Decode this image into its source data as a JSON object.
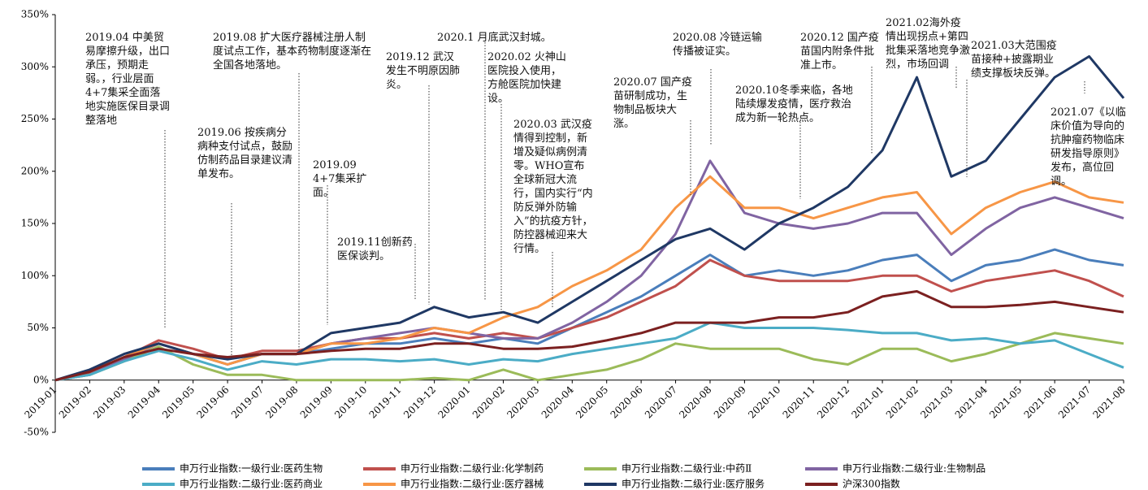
{
  "chart_data": {
    "type": "line",
    "categories": [
      "2019-01",
      "2019-02",
      "2019-03",
      "2019-04",
      "2019-05",
      "2019-06",
      "2019-07",
      "2019-08",
      "2019-09",
      "2019-10",
      "2019-11",
      "2019-12",
      "2020-01",
      "2020-02",
      "2020-03",
      "2020-04",
      "2020-05",
      "2020-06",
      "2020-07",
      "2020-08",
      "2020-09",
      "2020-10",
      "2020-11",
      "2020-12",
      "2021-01",
      "2021-02",
      "2021-03",
      "2021-04",
      "2021-05",
      "2021-06",
      "2021-07",
      "2021-08"
    ],
    "ylim": [
      -50,
      350
    ],
    "yticks": [
      {
        "value": -50,
        "label": "-50%"
      },
      {
        "value": 0,
        "label": "0%"
      },
      {
        "value": 50,
        "label": "50%"
      },
      {
        "value": 100,
        "label": "100%"
      },
      {
        "value": 150,
        "label": "150%"
      },
      {
        "value": 200,
        "label": "200%"
      },
      {
        "value": 250,
        "label": "250%"
      },
      {
        "value": 300,
        "label": "300%"
      },
      {
        "value": 350,
        "label": "350%"
      }
    ],
    "series": [
      {
        "name": "申万行业指数:一级行业:医药生物",
        "color": "#4a7ebb",
        "values": [
          0,
          6,
          20,
          35,
          25,
          15,
          25,
          25,
          30,
          35,
          35,
          40,
          35,
          40,
          35,
          50,
          65,
          80,
          100,
          120,
          100,
          105,
          100,
          105,
          115,
          120,
          95,
          110,
          115,
          125,
          115,
          110
        ]
      },
      {
        "name": "申万行业指数:二级行业:化学制药",
        "color": "#c0504d",
        "values": [
          0,
          6,
          22,
          38,
          30,
          20,
          28,
          28,
          35,
          40,
          40,
          45,
          40,
          45,
          40,
          50,
          60,
          75,
          90,
          115,
          100,
          95,
          95,
          95,
          100,
          100,
          85,
          95,
          100,
          105,
          95,
          80
        ]
      },
      {
        "name": "申万行业指数:二级行业:中药Ⅱ",
        "color": "#9bbb59",
        "values": [
          0,
          5,
          18,
          32,
          15,
          5,
          5,
          0,
          0,
          0,
          0,
          2,
          0,
          10,
          0,
          5,
          10,
          20,
          35,
          30,
          30,
          30,
          20,
          15,
          30,
          30,
          18,
          25,
          35,
          45,
          40,
          35
        ]
      },
      {
        "name": "申万行业指数:二级行业:生物制品",
        "color": "#8064a2",
        "values": [
          0,
          5,
          20,
          35,
          25,
          15,
          25,
          25,
          35,
          40,
          45,
          50,
          45,
          40,
          40,
          55,
          75,
          100,
          140,
          210,
          160,
          150,
          145,
          150,
          160,
          160,
          120,
          145,
          165,
          175,
          165,
          155
        ]
      },
      {
        "name": "申万行业指数:二级行业:医药商业",
        "color": "#4bacc6",
        "values": [
          0,
          5,
          18,
          28,
          20,
          10,
          18,
          15,
          20,
          20,
          18,
          20,
          15,
          20,
          18,
          25,
          30,
          35,
          40,
          55,
          50,
          50,
          50,
          48,
          45,
          45,
          38,
          40,
          35,
          38,
          25,
          12
        ]
      },
      {
        "name": "申万行业指数:二级行业:医疗器械",
        "color": "#f79646",
        "values": [
          0,
          8,
          22,
          35,
          25,
          15,
          25,
          25,
          35,
          35,
          40,
          50,
          45,
          60,
          70,
          90,
          105,
          125,
          165,
          195,
          165,
          165,
          155,
          165,
          175,
          180,
          140,
          165,
          180,
          190,
          175,
          170
        ]
      },
      {
        "name": "申万行业指数:二级行业:医疗服务",
        "color": "#1f3864",
        "values": [
          0,
          10,
          25,
          35,
          25,
          20,
          25,
          25,
          45,
          50,
          55,
          70,
          60,
          65,
          55,
          75,
          95,
          115,
          135,
          145,
          125,
          150,
          165,
          185,
          220,
          290,
          195,
          210,
          250,
          290,
          310,
          270
        ]
      },
      {
        "name": "沪深300指数",
        "color": "#7b2020",
        "values": [
          0,
          8,
          22,
          30,
          25,
          22,
          25,
          25,
          28,
          30,
          30,
          35,
          35,
          30,
          30,
          32,
          38,
          45,
          55,
          55,
          55,
          60,
          60,
          65,
          80,
          85,
          70,
          70,
          72,
          75,
          70,
          65
        ]
      }
    ],
    "annotations": [
      "2019.04 中美贸易摩擦升级，出口承压，预期走弱。，行业层面4+7集采全面落地实施医保目录调整落地",
      "2019.06 按疾病分病种支付试点，鼓励仿制药品目录建议清单发布。",
      "2019.08 扩大医疗器械注册人制度试点工作，基本药物制度逐渐在全国各地落地。",
      "2019.09 4+7集采扩面。",
      "2019.11创新药医保谈判。",
      "2019.12 武汉发生不明原因肺炎。",
      "2020.1 月底武汉封城。",
      "2020.02 火神山医院投入使用，方舱医院加快建设。",
      "2020.03 武汉疫情得到控制，新增及疑似病例清零。WHO宣布全球新冠大流行，国内实行“内防反弹外防输入”的抗疫方针，防控器械迎来大行情。",
      "2020.07 国产疫苗研制成功，生物制品板块大涨。",
      "2020.08 冷链运输传播被证实。",
      "2020.10冬季来临，各地陆续爆发疫情，医疗救治成为新一轮热点。",
      "2020.12 国产疫苗国内附条件批准上市。",
      "2021.02海外疫情出现拐点+第四批集采落地竞争激烈，市场回调",
      "2021.03大范围疫苗接种+披露期业绩支撑板块反弹。",
      "2021.07《以临床价值为导向的抗肿瘤药物临床研发指导原则》发布，高位回调。"
    ]
  }
}
